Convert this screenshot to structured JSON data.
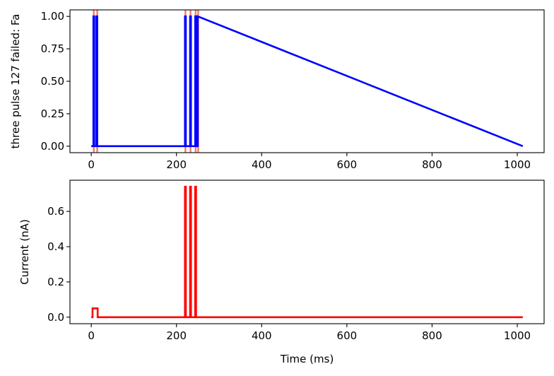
{
  "chart_data": [
    {
      "type": "line",
      "title": "",
      "xlabel": "",
      "ylabel": "three pulse 127 failed: Fa",
      "xlim": [
        -50,
        1063
      ],
      "ylim": [
        -0.05,
        1.05
      ],
      "xticks": [
        0,
        200,
        400,
        600,
        800,
        1000
      ],
      "xtick_labels": [
        "0",
        "200",
        "400",
        "600",
        "800",
        "1000"
      ],
      "yticks": [
        0.0,
        0.25,
        0.5,
        0.75,
        1.0
      ],
      "ytick_labels": [
        "0.00",
        "0.25",
        "0.50",
        "0.75",
        "1.00"
      ],
      "grid": false,
      "vlines": {
        "color": "#f08070",
        "x": [
          6,
          14,
          221,
          233,
          245,
          251
        ]
      },
      "series": [
        {
          "color": "#0000ff",
          "x": [
            0,
            5,
            5,
            7,
            7,
            12,
            12,
            14,
            14,
            220,
            220,
            222,
            222,
            232,
            232,
            234,
            234,
            244,
            244,
            246,
            246,
            250,
            250,
            1013
          ],
          "y": [
            0,
            0,
            1,
            1,
            0,
            0,
            1,
            1,
            0,
            0,
            1,
            1,
            0,
            0,
            1,
            1,
            0,
            0,
            1,
            1,
            0,
            0,
            1,
            0
          ]
        }
      ]
    },
    {
      "type": "line",
      "title": "",
      "xlabel": "Time (ms)",
      "ylabel": "Current (nA)",
      "xlim": [
        -50,
        1063
      ],
      "ylim": [
        -0.037,
        0.777
      ],
      "xticks": [
        0,
        200,
        400,
        600,
        800,
        1000
      ],
      "xtick_labels": [
        "0",
        "200",
        "400",
        "600",
        "800",
        "1000"
      ],
      "yticks": [
        0.0,
        0.2,
        0.4,
        0.6
      ],
      "ytick_labels": [
        "0.0",
        "0.2",
        "0.4",
        "0.6"
      ],
      "grid": false,
      "series": [
        {
          "color": "#ff0000",
          "x": [
            0,
            3,
            3,
            15,
            15,
            220,
            220,
            222,
            222,
            232,
            232,
            234,
            234,
            244,
            244,
            246,
            246,
            1013
          ],
          "y": [
            0,
            0,
            0.05,
            0.05,
            0,
            0,
            0.74,
            0.74,
            0,
            0,
            0.74,
            0.74,
            0,
            0,
            0.74,
            0.74,
            0,
            0
          ]
        }
      ]
    }
  ]
}
